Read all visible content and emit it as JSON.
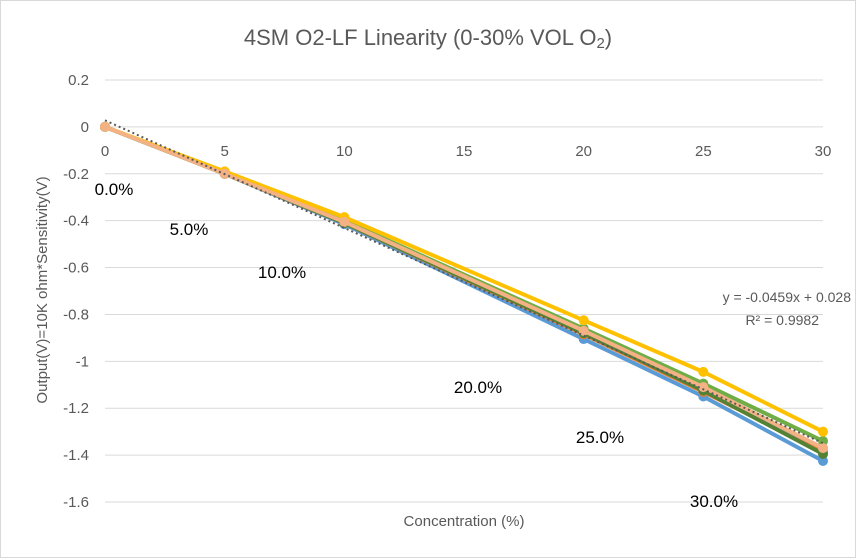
{
  "chart_data": {
    "type": "line",
    "title_main": "4SM O2-LF Linearity (0-30% VOL O",
    "title_sub": "2",
    "title_end": ")",
    "xlabel": "Concentration (%)",
    "ylabel": "Output(V)=10K ohm*Sensitivity(V)",
    "xlim": [
      0,
      30
    ],
    "ylim": [
      -1.6,
      0.2
    ],
    "x_ticks": [
      0,
      5,
      10,
      15,
      20,
      25,
      30
    ],
    "y_ticks": [
      0.2,
      0,
      -0.2,
      -0.4,
      -0.6,
      -0.8,
      -1,
      -1.2,
      -1.4,
      -1.6
    ],
    "x_tick_labels": [
      "0",
      "5",
      "10",
      "15",
      "20",
      "25",
      "30"
    ],
    "y_tick_labels": [
      "0.2",
      "0",
      "-0.2",
      "-0.4",
      "-0.6",
      "-0.8",
      "-1",
      "-1.2",
      "-1.4",
      "-1.6"
    ],
    "grid": "horizontal",
    "x": [
      0,
      5,
      10,
      20,
      25,
      30
    ],
    "series": [
      {
        "color": "#5b9bd5",
        "values": [
          0,
          -0.2,
          -0.415,
          -0.905,
          -1.15,
          -1.425
        ]
      },
      {
        "color": "#ed7d31",
        "values": [
          0,
          -0.2,
          -0.41,
          -0.885,
          -1.13,
          -1.385
        ]
      },
      {
        "color": "#a5a5a5",
        "values": [
          0,
          -0.2,
          -0.405,
          -0.875,
          -1.12,
          -1.37
        ]
      },
      {
        "color": "#70ad47",
        "values": [
          0,
          -0.195,
          -0.4,
          -0.86,
          -1.095,
          -1.34
        ]
      },
      {
        "color": "#548235",
        "values": [
          0,
          -0.2,
          -0.41,
          -0.88,
          -1.125,
          -1.395
        ]
      },
      {
        "color": "#ffc000",
        "values": [
          0,
          -0.19,
          -0.385,
          -0.825,
          -1.045,
          -1.3
        ]
      },
      {
        "color": "#f4b183",
        "values": [
          0,
          -0.2,
          -0.405,
          -0.87,
          -1.11,
          -1.37
        ]
      }
    ],
    "trendline": {
      "slope": -0.0459,
      "intercept": 0.028,
      "color": "#595959"
    },
    "equation": "y = -0.0459x + 0.028",
    "r2": "R² = 0.9982",
    "point_labels": [
      "0.0%",
      "5.0%",
      "10.0%",
      "20.0%",
      "25.0%",
      "30.0%"
    ]
  }
}
